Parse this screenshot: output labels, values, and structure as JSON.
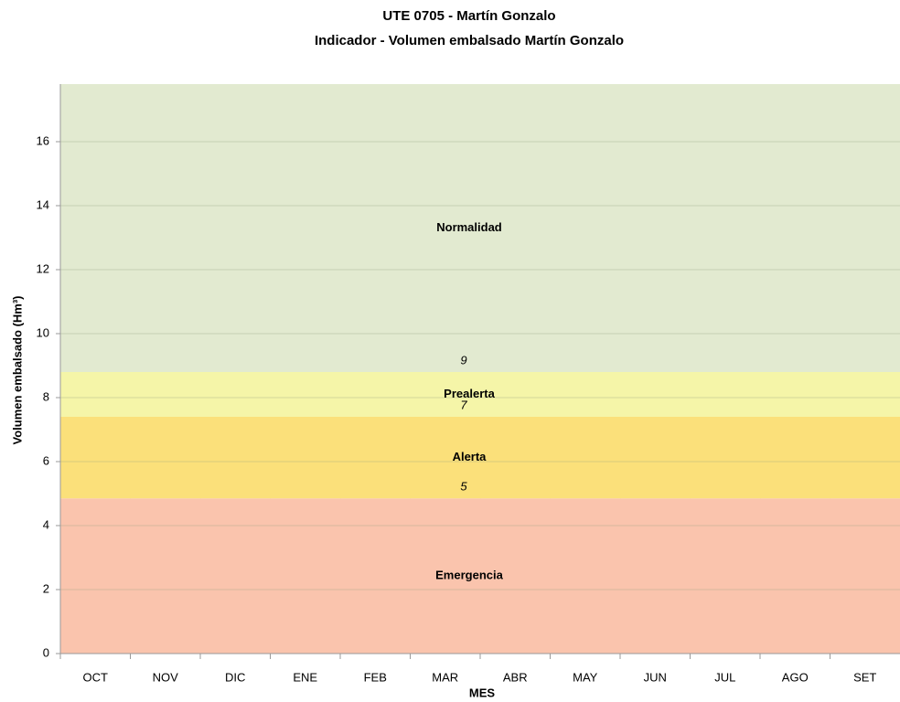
{
  "chart_data": {
    "type": "stacked-area",
    "title": "UTE 0705 - Martín Gonzalo",
    "subtitle": "Indicador - Volumen embalsado Martín Gonzalo",
    "x_label": "MES",
    "y_label": "Volumen embalsado (Hm³)",
    "categories": [
      "OCT",
      "NOV",
      "DIC",
      "ENE",
      "FEB",
      "MAR",
      "ABR",
      "MAY",
      "JUN",
      "JUL",
      "AGO",
      "SET"
    ],
    "series": [
      {
        "name": "Emergencia",
        "color": "#fac4ad",
        "values": [
          4.85,
          4.85,
          4.85,
          4.85,
          4.85,
          4.85,
          4.85,
          4.85,
          4.85,
          4.85,
          4.85,
          4.85
        ]
      },
      {
        "name": "Alerta",
        "color": "#fbe07a",
        "values": [
          2.55,
          2.55,
          2.55,
          2.55,
          2.55,
          2.55,
          2.55,
          2.55,
          2.55,
          2.55,
          2.55,
          2.55
        ]
      },
      {
        "name": "Prealerta",
        "color": "#f5f5a8",
        "values": [
          1.4,
          1.4,
          1.4,
          1.4,
          1.4,
          1.4,
          1.4,
          1.4,
          1.4,
          1.4,
          1.4,
          1.4
        ]
      },
      {
        "name": "Normalidad",
        "color": "#e2ead0",
        "values": [
          9.0,
          9.0,
          9.0,
          9.0,
          9.0,
          9.0,
          9.0,
          9.0,
          9.0,
          9.0,
          9.0,
          9.0
        ]
      }
    ],
    "thresholds": [
      {
        "value": 4.85,
        "label": "5"
      },
      {
        "value": 7.4,
        "label": "7"
      },
      {
        "value": 8.8,
        "label": "9"
      }
    ],
    "ylim": [
      0,
      17.8
    ],
    "yticks": [
      0,
      2,
      4,
      6,
      8,
      10,
      12,
      14,
      16
    ],
    "grid": true
  }
}
